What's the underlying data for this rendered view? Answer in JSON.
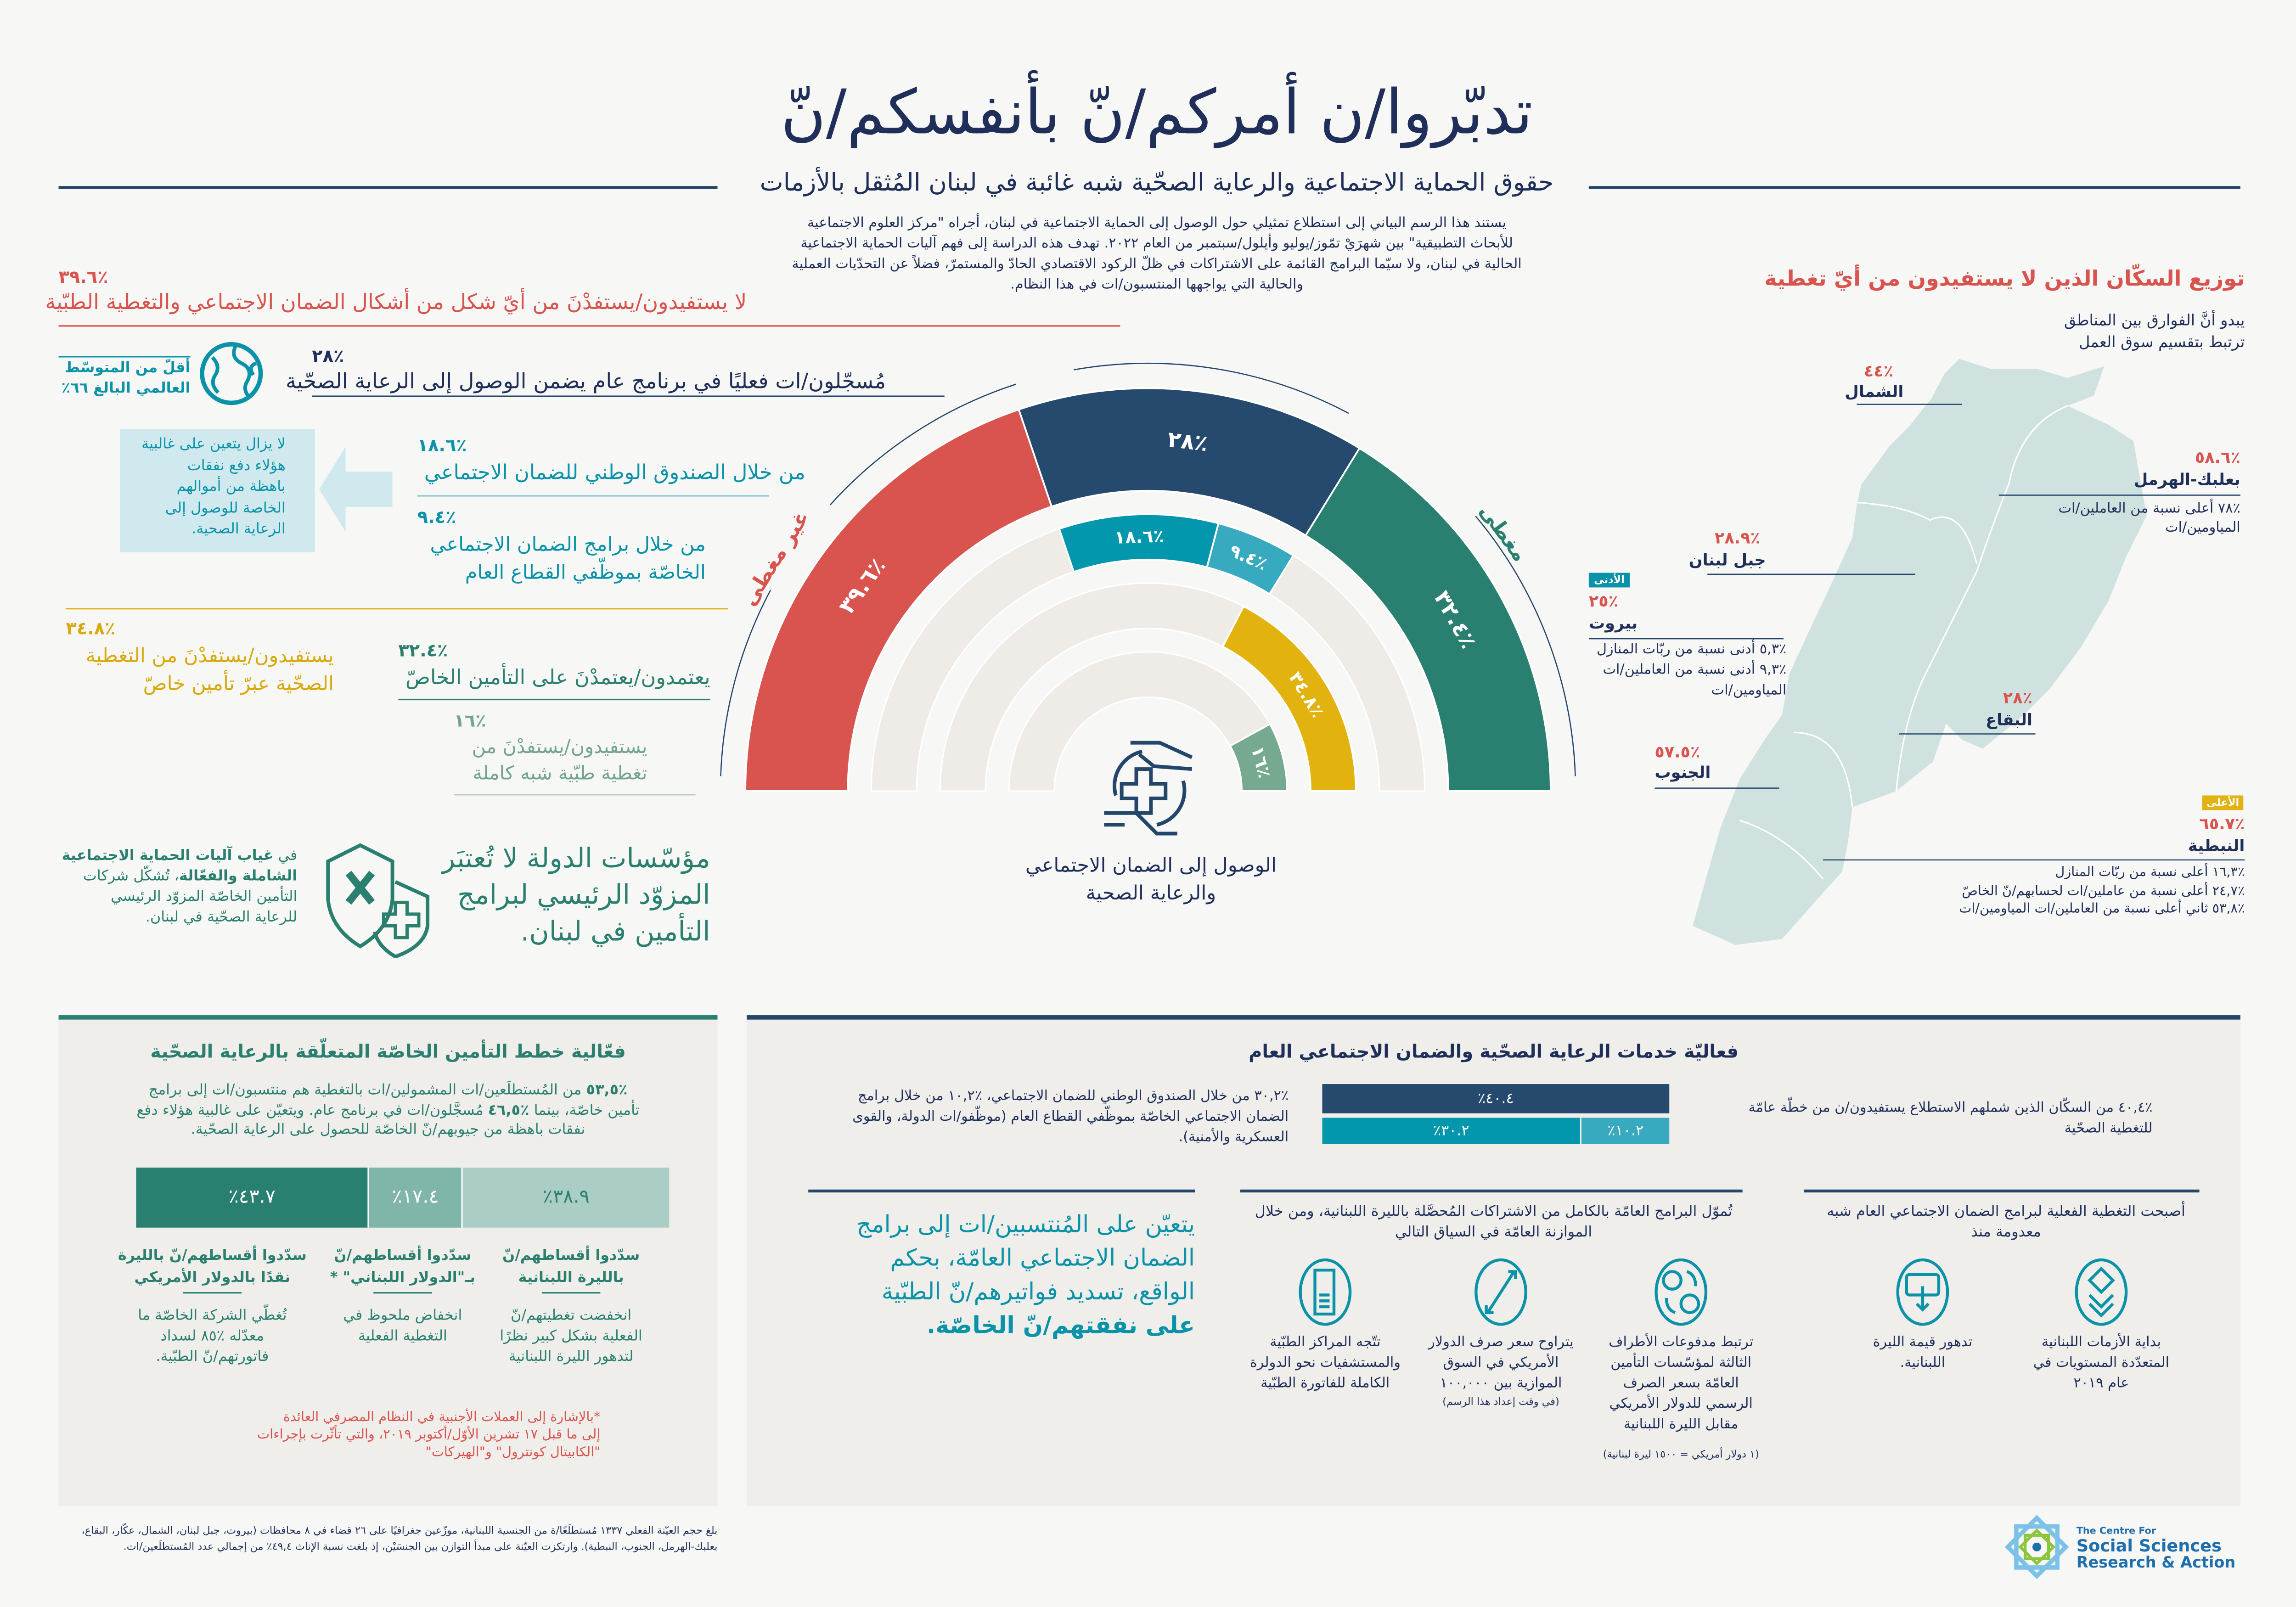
{
  "colors": {
    "navy": "#1f2f5a",
    "red": "#d9534f",
    "green": "#2a7f6f",
    "teal": "#0a93a8",
    "light_teal": "#37aabf",
    "gold": "#e2b30f",
    "sage": "#76a98f",
    "panel": "#f0eeeb",
    "map": "#cfe2df"
  },
  "header": {
    "title": "تدبّروا/ن أمركم/نّ بأنفسكم/نّ",
    "subtitle": "حقوق الحماية الاجتماعية والرعاية الصحّية شبه غائبة في لبنان المُثقل بالأزمات",
    "intro": [
      "يستند هذا الرسم البياني إلى استطلاع تمثيلي حول الوصول إلى الحماية الاجتماعية في لبنان، أجراه \"مركز العلوم الاجتماعية",
      "للأبحاث التطبيقية\" بين شهرَيْ تمّوز/يوليو وأيلول/سبتمبر من العام ٢٠٢٢. تهدف هذه الدراسة إلى فهم آليات الحماية الاجتماعية",
      "الحالية في لبنان، ولا سيّما البرامج القائمة على الاشتراكات في ظلّ الركود الاقتصادي الحادّ والمستمرّ، فضلاً عن التحدّيات العملية",
      "والحالية التي يواجهها المنتسبون/ات في هذا النظام."
    ]
  },
  "left": {
    "uncovered": {
      "value": "٪٣٩.٦",
      "text": "لا يستفيدون/يستفدْنَ من أيّ شكل من أشكال الضمان الاجتماعي والتغطية الطبّية"
    },
    "world": {
      "icon": "globe-icon",
      "lines": [
        "أقلّ من المتوسّط",
        "العالمي البالغ ٦٦٪"
      ]
    },
    "public": {
      "value": "٪٢٨",
      "text": "مُسجّلون/ات فعليًا في برنامج عام يضمن الوصول إلى الرعاية الصحّية"
    },
    "callout": [
      "لا يزال يتعين على غالبية",
      "هؤلاء دفع نفقات",
      "باهظة من أموالهم",
      "الخاصة للوصول إلى",
      "الرعاية الصحية."
    ],
    "nssf": {
      "value": "٪١٨.٦",
      "text": "من خلال الصندوق الوطني للضمان الاجتماعي"
    },
    "public_sector": {
      "value": "٪٩.٤",
      "lines": [
        "من خلال برامج الضمان الاجتماعي",
        "الخاصّة بموظّفي القطاع العام"
      ]
    },
    "private": {
      "value": "٪٣٤.٨",
      "lines": [
        "يستفيدون/يستفدْنَ من التغطية",
        "الصحّية عبرّ تأمين خاصّ"
      ]
    },
    "rely": {
      "value": "٪٣٢.٤",
      "text": "يعتمدون/يعتمدْنَ على التأمين الخاصّ"
    },
    "full": {
      "value": "٪١٦",
      "lines": [
        "يستفيدون/يستفدْنَ من",
        "تغطية طبّية شبه كاملة"
      ]
    },
    "state_note": {
      "p1": "في ",
      "b1": "غياب آليات الحماية الاجتماعية",
      "b2": "الشاملة والفعّالة",
      "p2": "، تُشكّل شركات",
      "l3": "التأمين الخاصّة المزوّد الرئيسي",
      "l4": "للرعاية الصحّية في لبنان."
    },
    "state_big": [
      "مؤسّسات الدولة لا تُعتبَر",
      "المزوّد الرئيسي لبرامج",
      "التأمين في لبنان."
    ]
  },
  "chart_caption": [
    "الوصول إلى الضمان الاجتماعي",
    "والرعاية الصحية"
  ],
  "map": {
    "title": "توزيع السكّان الذين لا يستفيدون من أيّ تغطية",
    "subtitle": [
      "يبدو أنَّ الفوارق بين المناطق",
      "ترتبط بتقسيم سوق العمل"
    ],
    "regions": {
      "north": {
        "value": "٪٤٤",
        "name": "الشمال"
      },
      "baalbek": {
        "value": "٪٥٨.٦",
        "name": "بعلبك-الهرمل",
        "notes": [
          "٪٧٨  أعلى نسبة من العاملين/ات",
          "المياومين/ات"
        ]
      },
      "mount": {
        "value": "٪٢٨.٩",
        "name": "جبل لبنان"
      },
      "beirut": {
        "badge": "الأدنى",
        "value": "٪٢٥",
        "name": "بيروت",
        "notes": [
          "٪٥,٣ أدنى نسبة من  ربّات المنازل",
          "٪٩,٣ أدنى نسبة من العاملين/ات",
          "المياومين/ات"
        ]
      },
      "bekaa": {
        "value": "٪٢٨",
        "name": "البقاع"
      },
      "south": {
        "value": "٪٥٧.٥",
        "name": "الجنوب"
      },
      "nabatieh": {
        "badge": "الأعلى",
        "value": "٪٦٥.٧",
        "name": "النبطية",
        "notes": [
          "٪١٦,٣  أعلى نسبة من ربّات المنازل",
          "٪٢٤,٧  أعلى نسبة من عاملين/ات لحسابهم/نّ الخاصّ",
          "٪٥٣,٨  ثاني أعلى نسبة من العاملين/ات المياومين/ات"
        ]
      }
    }
  },
  "private_panel": {
    "title": "فعّالية خطط التأمين الخاصّة المتعلّقة بالرعاية الصحّية",
    "para": {
      "b1": "٪٥٣,٥",
      "t1": " من المُستطلَعين/ات المشمولين/ات بالتغطية هم منتسبون/ات إلى برامج",
      "t2": "تأمين خاصّة، بينما ",
      "b2": "٪٤٦,٥",
      "t3": " مُسجَّلون/ات في برنامج عام. ويتعيّن على غالبية هؤلاء دفع",
      "t4": "نفقات باهظة من جيوبهم/نّ الخاصّة للحصول على الرعاية الصحّية."
    },
    "columns": [
      {
        "head": [
          "سدّدوا أقساطهم/نّ",
          "بالليرة اللبنانية"
        ],
        "desc": [
          "انخفضت تغطيتهم/نّ",
          "الفعلية بشكل كبير نظرًا",
          "لتدهور الليرة اللبنانية"
        ]
      },
      {
        "head": [
          "سدّدوا أقساطهم/نّ",
          "بـ\"الدولار اللبناني\" *"
        ],
        "desc": [
          "انخفاض ملحوظ في",
          "التغطية الفعلية"
        ]
      },
      {
        "head": [
          "سدّدوا أقساطهم/نّ بالليرة",
          "نقدًا بالدولار الأمريكي"
        ],
        "desc": [
          "تُغطّي الشركة الخاصّة ما",
          "معدّله ٪٨٥ لسداد",
          "فاتورتهم/نّ الطبّية."
        ]
      }
    ],
    "footnote": [
      "*بالإشارة إلى العملات الأجنبية في النظام المصرفي العائدة",
      "إلى ما قبل ١٧ تشرين الأوّل/أكتوبر ٢٠١٩، والتي تأثّرت بإجراءات",
      "\"الكابيتال كونترول\" و\"الهيركات\""
    ]
  },
  "public_panel": {
    "title": "فعاليّة خدمات الرعاية الصحّية والضمان الاجتماعي العام",
    "right_text": [
      "٪٤٠,٤ من السكّان الذين شملهم الاستطلاع يستفيدون/ن من خطّة عامّة",
      "للتغطية الصحّية"
    ],
    "left_text": [
      "٪٣٠,٢ من خلال الصندوق الوطني للضمان الاجتماعي، ٪١٠,٢ من خلال برامج",
      "الضمان الاجتماعي الخاصّة بموظّفي القطاع العام (موظّفو/ات الدولة، والقوى",
      "العسكرية والأمنية)."
    ],
    "callout": [
      "يتعيّن على المُنتسبين/ات إلى برامج",
      "الضمان الاجتماعي العامّة، بحكم",
      "الواقع، تسديد فواتيرهم/نّ الطبّية"
    ],
    "callout_bold": "على نفقتهم/نّ الخاصّة.",
    "funding": {
      "heading": [
        "تُموّل البرامج العامّة بالكامل من الاشتراكات المُحصَّلة بالليرة اللبنانية، ومن خلال",
        "الموازنة العامّة في السياق التالي"
      ],
      "items": [
        {
          "icon": "currency-exchange-icon",
          "lines": [
            "ترتبط مدفوعات الأطراف",
            "الثالثة لمؤسّسات التأمين",
            "العامّة بسعر الصرف",
            "الرسمي للدولار الأمريكي",
            "مقابل الليرة اللبنانية"
          ],
          "note": "(١ دولار أمريكي = ١٥٠٠ ليرة لبنانية)"
        },
        {
          "icon": "exchange-rate-icon",
          "lines": [
            "يتراوح سعر صرف الدولار",
            "الأمريكي في السوق",
            "الموازية بين ١٠٠,٠٠٠"
          ],
          "note": "(في وقت إعداد هذا الرسم)"
        },
        {
          "icon": "medical-bill-icon",
          "lines": [
            "تتّجه المراكز الطبّية",
            "والمستشفيات نحو الدولرة",
            "الكاملة للفاتورة الطبّية"
          ]
        }
      ]
    },
    "coverage": {
      "heading": [
        "أصبحت التغطية الفعلية لبرامج الضمان الاجتماعي العام شبه",
        "معدومة منذ"
      ],
      "items": [
        {
          "icon": "layers-icon",
          "lines": [
            "بداية الأزمات اللبنانية",
            "المتعدّدة المستويات في",
            "عام ٢٠١٩"
          ]
        },
        {
          "icon": "wallet-down-icon",
          "lines": [
            "تدهور قيمة الليرة",
            "اللبنانية."
          ]
        }
      ]
    }
  },
  "footer": [
    "بلغ حجم العيّنة الفعلي ١٣٣٧ مُستطلَعًا/ة من الجنسية اللبنانية، موزّعين جغرافيًا على ٢٦ قضاء في ٨ محافظات (بيروت، جبل لبنان، الشمال، عكّار، البقاع،",
    "بعلبك-الهرمل، الجنوب، النبطية). وارتكزت العيّنة على مبدأ التوازن بين الجنسَيْن، إذ بلغت نسبة الإناث ٤٩,٤٪ من إجمالي عدد المُستطلَعين/ات."
  ],
  "logo": {
    "line1": "The Centre For",
    "line2": "Social Sciences",
    "line3": "Research & Action"
  },
  "chart_data": [
    {
      "type": "pie",
      "title": "الوصول إلى الضمان الاجتماعي والرعاية الصحية",
      "shape": "semicircle-rings",
      "ring_labels": {
        "uncovered": "غير مغطى",
        "covered": "مغطى"
      },
      "rings": [
        [
          {
            "value": 39.6,
            "label": "٣٩.٦٪",
            "color": "#d9534f"
          },
          {
            "value": 28,
            "label": "٢٨٪",
            "color": "#264a6e"
          },
          {
            "value": 32.4,
            "label": "٣٢.٤٪",
            "color": "#2a8070"
          }
        ],
        [
          {
            "value": 18.6,
            "label": "١٨.٦٪",
            "color": "#0397ad"
          },
          {
            "value": 9.4,
            "label": "٩.٤٪",
            "color": "#37aabf"
          }
        ],
        [
          {
            "value": 34.8,
            "label": "٣٤.٨٪",
            "color": "#e2b30f"
          }
        ],
        [
          {
            "value": 16,
            "label": "١٦٪",
            "color": "#76a98f"
          }
        ]
      ]
    },
    {
      "type": "bar",
      "stacked": true,
      "title": "فعّالية خطط التأمين الخاصّة المتعلّقة بالرعاية الصحّية",
      "series": [
        {
          "value": 43.7,
          "label": "٪٤٣.٧",
          "color": "#2a8070"
        },
        {
          "value": 17.4,
          "label": "٪١٧.٤",
          "color": "#80b5a9"
        },
        {
          "value": 38.9,
          "label": "٪٣٨.٩",
          "color": "#aacdc5"
        }
      ]
    },
    {
      "type": "bar",
      "stacked": true,
      "title": "فعاليّة خدمات الرعاية الصحّية والضمان الاجتماعي العام",
      "total": {
        "value": 40.4,
        "label": "٪٤٠.٤",
        "color": "#264a6e"
      },
      "series": [
        {
          "value": 30.2,
          "label": "٪٣٠.٢",
          "color": "#0397ad"
        },
        {
          "value": 10.2,
          "label": "٪١٠.٢",
          "color": "#37aabf"
        }
      ]
    }
  ]
}
